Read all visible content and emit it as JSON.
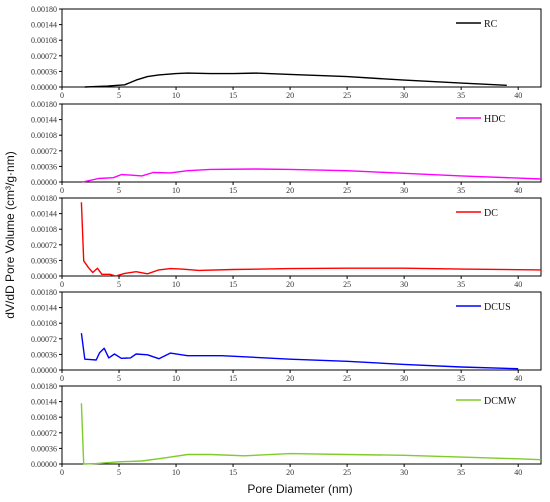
{
  "chart_data": {
    "type": "line",
    "xlabel": "Pore Diameter (nm)",
    "ylabel": "dV/dD Pore Volume (cm³/g·nm)",
    "xlim": [
      0,
      42
    ],
    "ylim": [
      0,
      0.0018
    ],
    "x_ticks": [
      "0",
      "5",
      "10",
      "15",
      "20",
      "25",
      "30",
      "35",
      "40"
    ],
    "y_ticks": [
      "0.00000",
      "0.00036",
      "0.00072",
      "0.00108",
      "0.00144",
      "0.00180"
    ],
    "legend_position": "top-right",
    "panels": [
      {
        "name": "RC",
        "color": "#000000",
        "points": [
          [
            2,
            0.0
          ],
          [
            4,
            2e-05
          ],
          [
            5.5,
            5e-05
          ],
          [
            6.5,
            0.00016
          ],
          [
            7.5,
            0.00024
          ],
          [
            8.5,
            0.00028
          ],
          [
            10,
            0.00031
          ],
          [
            11,
            0.00032
          ],
          [
            13,
            0.00031
          ],
          [
            15,
            0.00031
          ],
          [
            17,
            0.00032
          ],
          [
            20,
            0.00029
          ],
          [
            25,
            0.00024
          ],
          [
            30,
            0.00016
          ],
          [
            35,
            9e-05
          ],
          [
            39,
            4e-05
          ]
        ]
      },
      {
        "name": "HDC",
        "color": "#ff00ff",
        "points": [
          [
            1.8,
            0.0
          ],
          [
            2.5,
            4e-05
          ],
          [
            3.2,
            8e-05
          ],
          [
            4.5,
            0.0001
          ],
          [
            5.2,
            0.00017
          ],
          [
            6,
            0.00016
          ],
          [
            7,
            0.00014
          ],
          [
            8,
            0.00022
          ],
          [
            9.5,
            0.00021
          ],
          [
            11,
            0.00026
          ],
          [
            13,
            0.00029
          ],
          [
            17,
            0.0003
          ],
          [
            20,
            0.00029
          ],
          [
            25,
            0.00026
          ],
          [
            30,
            0.0002
          ],
          [
            35,
            0.00014
          ],
          [
            40,
            9e-05
          ],
          [
            42,
            7e-05
          ]
        ]
      },
      {
        "name": "DC",
        "color": "#ff0000",
        "points": [
          [
            1.7,
            0.0017
          ],
          [
            1.9,
            0.00035
          ],
          [
            2.3,
            0.0002
          ],
          [
            2.7,
            8e-05
          ],
          [
            3.1,
            0.00018
          ],
          [
            3.5,
            4e-05
          ],
          [
            4.2,
            4e-05
          ],
          [
            4.7,
            0.0
          ],
          [
            5.5,
            6e-05
          ],
          [
            6.5,
            0.0001
          ],
          [
            7.5,
            5e-05
          ],
          [
            8.5,
            0.00014
          ],
          [
            9.5,
            0.00017
          ],
          [
            10.5,
            0.00016
          ],
          [
            12,
            0.00013
          ],
          [
            15,
            0.00015
          ],
          [
            20,
            0.00017
          ],
          [
            25,
            0.00018
          ],
          [
            30,
            0.00018
          ],
          [
            35,
            0.00016
          ],
          [
            42,
            0.00014
          ]
        ]
      },
      {
        "name": "DCUS",
        "color": "#0000ff",
        "points": [
          [
            1.7,
            0.00085
          ],
          [
            2.0,
            0.00025
          ],
          [
            2.5,
            0.00024
          ],
          [
            3.0,
            0.00023
          ],
          [
            3.3,
            0.0004
          ],
          [
            3.7,
            0.0005
          ],
          [
            4.1,
            0.00028
          ],
          [
            4.6,
            0.00037
          ],
          [
            5.2,
            0.00027
          ],
          [
            6.0,
            0.00028
          ],
          [
            6.5,
            0.00037
          ],
          [
            7.5,
            0.00035
          ],
          [
            8.5,
            0.00026
          ],
          [
            9.5,
            0.00039
          ],
          [
            11,
            0.00033
          ],
          [
            14,
            0.00033
          ],
          [
            17,
            0.00029
          ],
          [
            20,
            0.00025
          ],
          [
            25,
            0.0002
          ],
          [
            30,
            0.00013
          ],
          [
            35,
            7e-05
          ],
          [
            40,
            3e-05
          ]
        ]
      },
      {
        "name": "DCMW",
        "color": "#7fcc2a",
        "points": [
          [
            1.7,
            0.0014
          ],
          [
            1.9,
            0.0
          ],
          [
            3,
            1e-05
          ],
          [
            5,
            5e-05
          ],
          [
            7,
            7e-05
          ],
          [
            9,
            0.00014
          ],
          [
            11,
            0.00022
          ],
          [
            13,
            0.00022
          ],
          [
            16,
            0.00019
          ],
          [
            20,
            0.00024
          ],
          [
            25,
            0.00022
          ],
          [
            30,
            0.0002
          ],
          [
            35,
            0.00016
          ],
          [
            40,
            0.00012
          ],
          [
            42,
            0.0001
          ]
        ]
      }
    ]
  }
}
